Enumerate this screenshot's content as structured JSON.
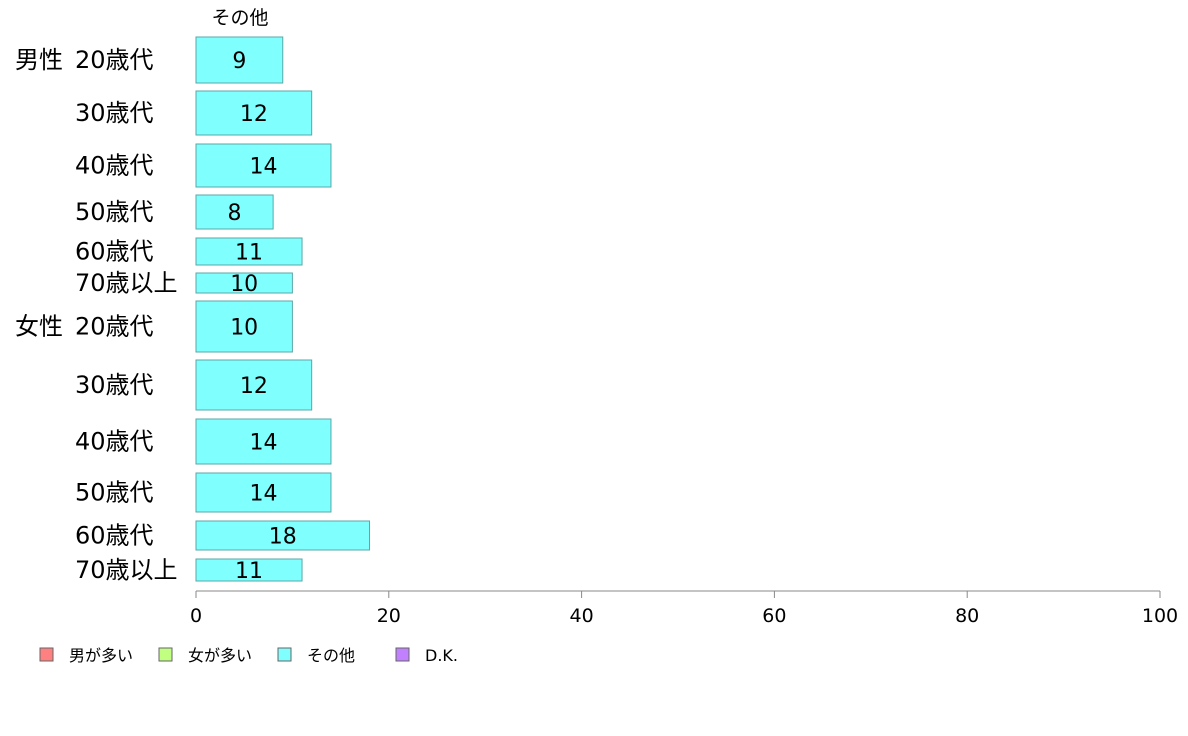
{
  "chart_data": {
    "type": "bar",
    "orientation": "horizontal",
    "stacked": true,
    "series_title": "その他",
    "groups": [
      {
        "label": "男性",
        "categories": [
          "20歳代",
          "30歳代",
          "40歳代",
          "50歳代",
          "60歳代",
          "70歳以上"
        ]
      },
      {
        "label": "女性",
        "categories": [
          "20歳代",
          "30歳代",
          "40歳代",
          "50歳代",
          "60歳代",
          "70歳以上"
        ]
      }
    ],
    "series": [
      {
        "name": "その他",
        "color": "#80ffff",
        "values": [
          9,
          12,
          14,
          8,
          11,
          10,
          10,
          12,
          14,
          14,
          18,
          11
        ]
      }
    ],
    "xlim": [
      0,
      100
    ],
    "xticks": [
      0,
      20,
      40,
      60,
      80,
      100
    ],
    "grid": false,
    "legend": {
      "position": "bottom-left",
      "items": [
        {
          "label": "男が多い",
          "color": "#ff8080"
        },
        {
          "label": "女が多い",
          "color": "#c0ff80"
        },
        {
          "label": "その他",
          "color": "#80ffff"
        },
        {
          "label": "D.K.",
          "color": "#c080ff"
        }
      ]
    }
  }
}
